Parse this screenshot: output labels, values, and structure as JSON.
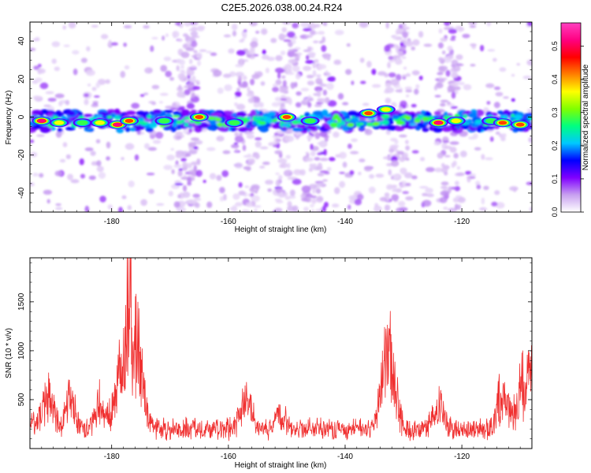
{
  "page_title": "C2E5.2026.038.00.24.R24",
  "chart_data": [
    {
      "type": "heatmap",
      "title": "C2E5.2026.038.00.24.R24",
      "xlabel": "Height of straight line (km)",
      "ylabel": "Frequency (Hz)",
      "xlim": [
        -194,
        -108
      ],
      "ylim": [
        -50,
        50
      ],
      "x_ticks": [
        -180,
        -160,
        -140,
        -120
      ],
      "y_ticks": [
        -40,
        -20,
        0,
        20,
        40
      ],
      "colorbar": {
        "label": "Normalized spectral amplitude",
        "range": [
          0.0,
          0.57
        ],
        "ticks": [
          0.0,
          0.1,
          0.2,
          0.3,
          0.4,
          0.5
        ],
        "colormap": [
          "#ffffff",
          "#c8a0f0",
          "#8000ff",
          "#0000ff",
          "#00c8ff",
          "#00ff80",
          "#80ff00",
          "#ffff00",
          "#ff8000",
          "#ff0000",
          "#ff0080",
          "#ff40c0"
        ]
      },
      "ridge": {
        "frequency_hz": -2,
        "hot_spots": [
          {
            "x": -192,
            "f": -2,
            "a": 0.55
          },
          {
            "x": -189,
            "f": -3,
            "a": 0.4
          },
          {
            "x": -185,
            "f": -3,
            "a": 0.35
          },
          {
            "x": -182,
            "f": -3,
            "a": 0.38
          },
          {
            "x": -179,
            "f": -4,
            "a": 0.52
          },
          {
            "x": -177,
            "f": -2,
            "a": 0.5
          },
          {
            "x": -171,
            "f": -2,
            "a": 0.3
          },
          {
            "x": -165,
            "f": 0,
            "a": 0.45
          },
          {
            "x": -159,
            "f": -3,
            "a": 0.33
          },
          {
            "x": -150,
            "f": 0,
            "a": 0.5
          },
          {
            "x": -146,
            "f": -2,
            "a": 0.3
          },
          {
            "x": -136,
            "f": 2,
            "a": 0.48
          },
          {
            "x": -133,
            "f": 4,
            "a": 0.4
          },
          {
            "x": -124,
            "f": -3,
            "a": 0.52
          },
          {
            "x": -121,
            "f": -2,
            "a": 0.4
          },
          {
            "x": -115,
            "f": -2,
            "a": 0.3
          },
          {
            "x": -113,
            "f": -3,
            "a": 0.5
          },
          {
            "x": -110,
            "f": -4,
            "a": 0.5
          }
        ],
        "vertical_bands_km": [
          -167,
          -157,
          -150,
          -145,
          -131,
          -122
        ]
      }
    },
    {
      "type": "line",
      "xlabel": "Height of straight line (km)",
      "ylabel": "SNR (10 * v/v)",
      "xlim": [
        -194,
        -108
      ],
      "ylim": [
        0,
        1950
      ],
      "x_ticks": [
        -180,
        -160,
        -140,
        -120
      ],
      "y_ticks": [
        500,
        1000,
        1500
      ],
      "series": [
        {
          "name": "SNR",
          "color": "#f03030",
          "baseline": 200,
          "noise": 180,
          "peaks": [
            {
              "x": -194,
              "v": 400
            },
            {
              "x": -191,
              "v": 880
            },
            {
              "x": -187,
              "v": 650
            },
            {
              "x": -182,
              "v": 680
            },
            {
              "x": -179,
              "v": 500
            },
            {
              "x": -178,
              "v": 1050
            },
            {
              "x": -177,
              "v": 1950
            },
            {
              "x": -176,
              "v": 1130
            },
            {
              "x": -175,
              "v": 900
            },
            {
              "x": -157,
              "v": 720
            },
            {
              "x": -151,
              "v": 480
            },
            {
              "x": -133,
              "v": 1200
            },
            {
              "x": -132,
              "v": 900
            },
            {
              "x": -124,
              "v": 620
            },
            {
              "x": -113,
              "v": 780
            },
            {
              "x": -110,
              "v": 740
            },
            {
              "x": -108,
              "v": 1150
            }
          ]
        }
      ]
    }
  ]
}
